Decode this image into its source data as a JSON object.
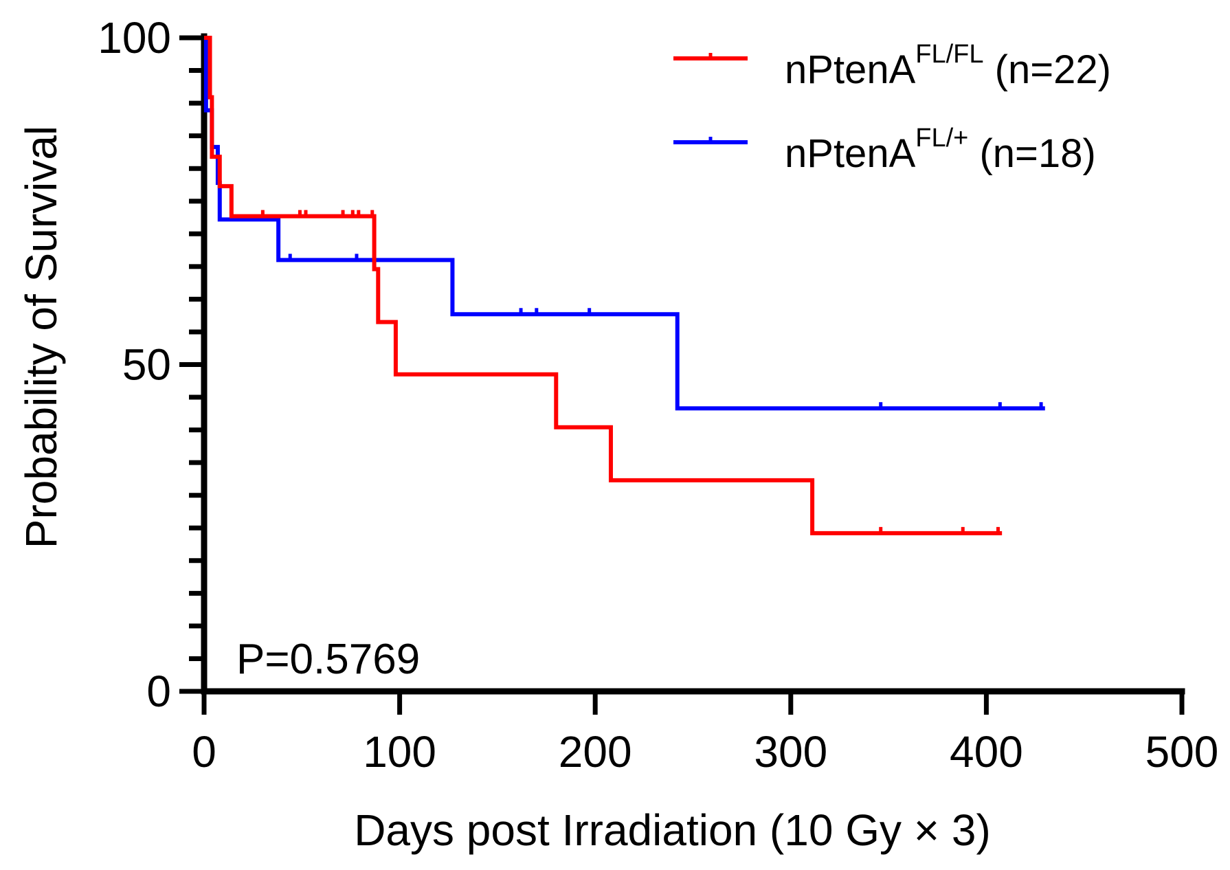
{
  "chart_data": {
    "type": "line",
    "subtype": "kaplan-meier",
    "title": "",
    "xlabel": "Days post Irradiation (10 Gy × 3)",
    "ylabel": "Probability of Survival",
    "xlim": [
      0,
      500
    ],
    "ylim": [
      0,
      100
    ],
    "x_ticks": [
      0,
      100,
      200,
      300,
      400,
      500
    ],
    "y_ticks": [
      0,
      50,
      100
    ],
    "y_minor_step": 5,
    "annotation": "P=0.5769",
    "legend_position": "top-right",
    "series": [
      {
        "name": "nPtenA",
        "superscript": "FL/FL",
        "n_text": "(n=22)",
        "color": "#ff0000",
        "steps": [
          {
            "x": 0,
            "y": 100
          },
          {
            "x": 3,
            "y": 90.9
          },
          {
            "x": 4,
            "y": 81.8
          },
          {
            "x": 8,
            "y": 77.3
          },
          {
            "x": 14,
            "y": 72.7
          },
          {
            "x": 87,
            "y": 64.6
          },
          {
            "x": 89,
            "y": 56.5
          },
          {
            "x": 98,
            "y": 48.5
          },
          {
            "x": 180,
            "y": 40.4
          },
          {
            "x": 208,
            "y": 32.3
          },
          {
            "x": 311,
            "y": 24.2
          }
        ],
        "end_x": 408,
        "censored": [
          30,
          49,
          52,
          71,
          76,
          79,
          86,
          346,
          388,
          406
        ]
      },
      {
        "name": "nPtenA",
        "superscript": "FL/+",
        "n_text": "(n=18)",
        "color": "#0000ff",
        "steps": [
          {
            "x": 0,
            "y": 100
          },
          {
            "x": 1,
            "y": 88.9
          },
          {
            "x": 4,
            "y": 83.3
          },
          {
            "x": 7,
            "y": 77.8
          },
          {
            "x": 8,
            "y": 72.2
          },
          {
            "x": 38,
            "y": 66.0
          },
          {
            "x": 127,
            "y": 57.7
          },
          {
            "x": 242,
            "y": 43.3
          }
        ],
        "end_x": 430,
        "censored": [
          44,
          78,
          162,
          170,
          197,
          346,
          407,
          428
        ]
      }
    ]
  }
}
